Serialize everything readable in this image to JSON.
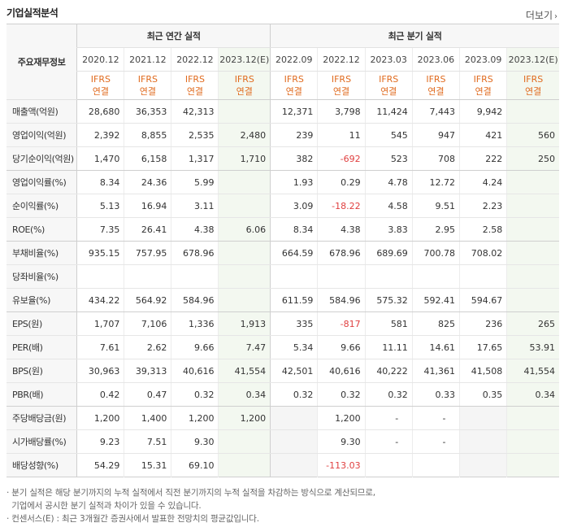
{
  "section_title": "기업실적분석",
  "more_label": "더보기",
  "header": {
    "label_head": "주요재무정보",
    "annual_group": "최근 연간 실적",
    "quarter_group": "최근 분기 실적",
    "annual_periods": [
      "2020.12",
      "2021.12",
      "2022.12",
      "2023.12(E)"
    ],
    "quarter_periods": [
      "2022.09",
      "2022.12",
      "2023.03",
      "2023.06",
      "2023.09",
      "2023.12(E)"
    ],
    "basis_line1": "IFRS",
    "basis_line2": "연결"
  },
  "rows": [
    {
      "label": "매출액(억원)",
      "annual": [
        "28,680",
        "36,353",
        "42,313",
        ""
      ],
      "quarter": [
        "12,371",
        "3,798",
        "11,424",
        "7,443",
        "9,942",
        ""
      ]
    },
    {
      "label": "영업이익(억원)",
      "annual": [
        "2,392",
        "8,855",
        "2,535",
        "2,480"
      ],
      "quarter": [
        "239",
        "11",
        "545",
        "947",
        "421",
        "560"
      ]
    },
    {
      "label": "당기순이익(억원)",
      "annual": [
        "1,470",
        "6,158",
        "1,317",
        "1,710"
      ],
      "quarter": [
        "382",
        "-692",
        "523",
        "708",
        "222",
        "250"
      ]
    },
    {
      "label": "영업이익률(%)",
      "annual": [
        "8.34",
        "24.36",
        "5.99",
        ""
      ],
      "quarter": [
        "1.93",
        "0.29",
        "4.78",
        "12.72",
        "4.24",
        ""
      ]
    },
    {
      "label": "순이익률(%)",
      "annual": [
        "5.13",
        "16.94",
        "3.11",
        ""
      ],
      "quarter": [
        "3.09",
        "-18.22",
        "4.58",
        "9.51",
        "2.23",
        ""
      ]
    },
    {
      "label": "ROE(%)",
      "annual": [
        "7.35",
        "26.41",
        "4.38",
        "6.06"
      ],
      "quarter": [
        "8.34",
        "4.38",
        "3.83",
        "2.95",
        "2.58",
        ""
      ]
    },
    {
      "label": "부채비율(%)",
      "annual": [
        "935.15",
        "757.95",
        "678.96",
        ""
      ],
      "quarter": [
        "664.59",
        "678.96",
        "689.69",
        "700.78",
        "708.02",
        ""
      ]
    },
    {
      "label": "당좌비율(%)",
      "annual": [
        "",
        "",
        "",
        ""
      ],
      "quarter": [
        "",
        "",
        "",
        "",
        "",
        ""
      ]
    },
    {
      "label": "유보율(%)",
      "annual": [
        "434.22",
        "564.92",
        "584.96",
        ""
      ],
      "quarter": [
        "611.59",
        "584.96",
        "575.32",
        "592.41",
        "594.67",
        ""
      ]
    },
    {
      "label": "EPS(원)",
      "annual": [
        "1,707",
        "7,106",
        "1,336",
        "1,913"
      ],
      "quarter": [
        "335",
        "-817",
        "581",
        "825",
        "236",
        "265"
      ]
    },
    {
      "label": "PER(배)",
      "annual": [
        "7.61",
        "2.62",
        "9.66",
        "7.47"
      ],
      "quarter": [
        "5.34",
        "9.66",
        "11.11",
        "14.61",
        "17.65",
        "53.91"
      ]
    },
    {
      "label": "BPS(원)",
      "annual": [
        "30,963",
        "39,313",
        "40,616",
        "41,554"
      ],
      "quarter": [
        "42,501",
        "40,616",
        "40,222",
        "41,361",
        "41,508",
        "41,554"
      ]
    },
    {
      "label": "PBR(배)",
      "annual": [
        "0.42",
        "0.47",
        "0.32",
        "0.34"
      ],
      "quarter": [
        "0.32",
        "0.32",
        "0.32",
        "0.33",
        "0.35",
        "0.34"
      ]
    },
    {
      "label": "주당배당금(원)",
      "annual": [
        "1,200",
        "1,400",
        "1,200",
        "1,200"
      ],
      "quarter": [
        "",
        "1,200",
        "-",
        "-",
        "",
        ""
      ]
    },
    {
      "label": "시가배당률(%)",
      "annual": [
        "9.23",
        "7.51",
        "9.30",
        ""
      ],
      "quarter": [
        "",
        "9.30",
        "-",
        "-",
        "",
        ""
      ]
    },
    {
      "label": "배당성향(%)",
      "annual": [
        "54.29",
        "15.31",
        "69.10",
        ""
      ],
      "quarter": [
        "",
        "-113.03",
        "",
        "",
        "",
        ""
      ]
    }
  ],
  "notes": [
    "· 분기 실적은 해당 분기까지의 누적 실적에서 직전 분기까지의 누적 실적을 차감하는 방식으로 계산되므로,",
    "  기업에서 공시한 분기 실적과 차이가 있을 수 있습니다.",
    "· 컨센서스(E) : 최근 3개월간 증권사에서 발표한 전망치의 평균값입니다."
  ],
  "colors": {
    "basis": "#e06b1f",
    "negative": "#e04040",
    "estimate_bg": "#f3f8f0"
  }
}
